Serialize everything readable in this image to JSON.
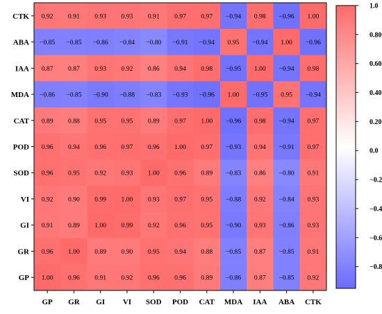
{
  "chart_data": {
    "type": "heatmap",
    "title": "",
    "xlabel": "",
    "ylabel": "",
    "x_labels": [
      "GP",
      "GR",
      "GI",
      "VI",
      "SOD",
      "POD",
      "CAT",
      "MDA",
      "IAA",
      "ABA",
      "CTK"
    ],
    "y_labels": [
      "CTK",
      "ABA",
      "IAA",
      "MDA",
      "CAT",
      "POD",
      "SOD",
      "VI",
      "GI",
      "GR",
      "GP"
    ],
    "values": [
      [
        0.92,
        0.91,
        0.93,
        0.93,
        0.91,
        0.97,
        0.97,
        -0.94,
        0.98,
        -0.96,
        1.0
      ],
      [
        -0.85,
        -0.85,
        -0.86,
        -0.84,
        -0.8,
        -0.91,
        -0.94,
        0.95,
        -0.94,
        1.0,
        -0.96
      ],
      [
        0.87,
        0.87,
        0.93,
        0.92,
        0.86,
        0.94,
        0.98,
        -0.95,
        1.0,
        -0.94,
        0.98
      ],
      [
        -0.86,
        -0.85,
        -0.9,
        -0.88,
        -0.83,
        -0.93,
        -0.96,
        1.0,
        -0.95,
        0.95,
        -0.94
      ],
      [
        0.89,
        0.88,
        0.95,
        0.95,
        0.89,
        0.97,
        1.0,
        -0.96,
        0.98,
        -0.94,
        0.97
      ],
      [
        0.96,
        0.94,
        0.96,
        0.97,
        0.96,
        1.0,
        0.97,
        -0.93,
        0.94,
        -0.91,
        0.97
      ],
      [
        0.96,
        0.95,
        0.92,
        0.93,
        1.0,
        0.96,
        0.89,
        -0.83,
        0.86,
        -0.8,
        0.91
      ],
      [
        0.92,
        0.9,
        0.99,
        1.0,
        0.93,
        0.97,
        0.95,
        -0.88,
        0.92,
        -0.84,
        0.93
      ],
      [
        0.91,
        0.89,
        1.0,
        0.99,
        0.92,
        0.96,
        0.95,
        -0.9,
        0.93,
        -0.86,
        0.93
      ],
      [
        0.96,
        1.0,
        0.89,
        0.9,
        0.95,
        0.94,
        0.88,
        -0.85,
        0.87,
        -0.85,
        0.91
      ],
      [
        1.0,
        0.96,
        0.91,
        0.92,
        0.96,
        0.96,
        0.89,
        -0.86,
        0.87,
        -0.85,
        0.92
      ]
    ],
    "colorbar": {
      "ticks": [
        1.0,
        0.8,
        0.6,
        0.4,
        0.2,
        0.0,
        -0.2,
        -0.4,
        -0.6,
        -0.8
      ],
      "tick_labels": [
        "1.0",
        "0.80",
        "0.60",
        "0.40",
        "0.20",
        "0.0",
        "−0.20",
        "−0.40",
        "−0.60",
        "−0.80"
      ],
      "range": [
        -0.95,
        1.0
      ]
    },
    "colors": {
      "positive": "#ff6b6b",
      "negative": "#6b6bff",
      "neutral": "#ffffff"
    },
    "grid": false
  }
}
